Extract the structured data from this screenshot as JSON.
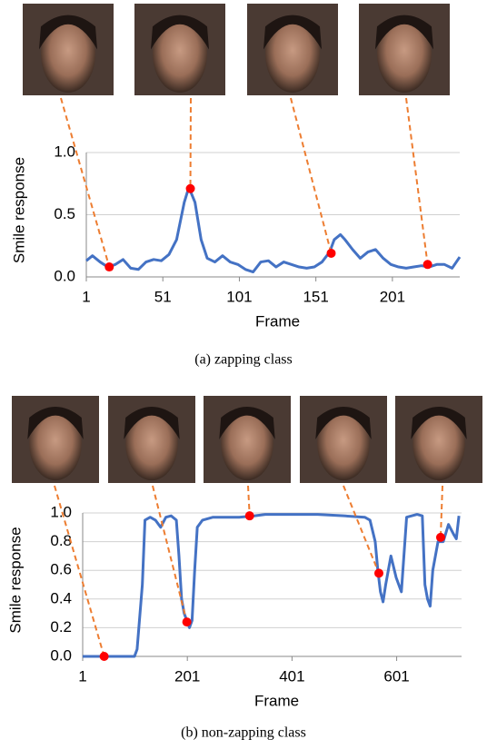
{
  "chart_data": [
    {
      "type": "line",
      "caption": "(a) zapping class",
      "ylabel": "Smile response",
      "xlabel": "Frame",
      "xlim": [
        1,
        245
      ],
      "xticks": [
        1,
        51,
        101,
        151,
        201
      ],
      "ylim": [
        0,
        1
      ],
      "yticks": [
        {
          "value": 0,
          "label": "0.0"
        },
        {
          "value": 0.5,
          "label": "0.5"
        },
        {
          "value": 1,
          "label": "1.0"
        }
      ],
      "grid": true,
      "series": [
        {
          "color": "#4472c4",
          "x": [
            1,
            5,
            10,
            15,
            20,
            25,
            30,
            35,
            40,
            45,
            50,
            55,
            60,
            65,
            68,
            72,
            76,
            80,
            85,
            90,
            95,
            100,
            105,
            110,
            115,
            120,
            125,
            130,
            135,
            140,
            145,
            150,
            155,
            160,
            163,
            167,
            170,
            175,
            180,
            185,
            190,
            195,
            200,
            205,
            210,
            215,
            220,
            225,
            230,
            235,
            240,
            245
          ],
          "values": [
            0.13,
            0.17,
            0.12,
            0.08,
            0.1,
            0.14,
            0.07,
            0.06,
            0.12,
            0.14,
            0.13,
            0.18,
            0.3,
            0.6,
            0.72,
            0.6,
            0.3,
            0.15,
            0.12,
            0.17,
            0.12,
            0.1,
            0.06,
            0.04,
            0.12,
            0.13,
            0.08,
            0.12,
            0.1,
            0.08,
            0.07,
            0.08,
            0.12,
            0.2,
            0.3,
            0.34,
            0.3,
            0.22,
            0.15,
            0.2,
            0.22,
            0.15,
            0.1,
            0.08,
            0.07,
            0.08,
            0.09,
            0.08,
            0.1,
            0.1,
            0.07,
            0.16
          ]
        }
      ],
      "markers": {
        "color": "#ff0000",
        "x": [
          16,
          69,
          161,
          224
        ],
        "values": [
          0.08,
          0.71,
          0.19,
          0.1
        ]
      }
    },
    {
      "type": "line",
      "caption": "(b) non-zapping class",
      "ylabel": "Smile response",
      "xlabel": "Frame",
      "xlim": [
        1,
        725
      ],
      "xticks": [
        1,
        201,
        401,
        601
      ],
      "ylim": [
        0,
        1
      ],
      "yticks": [
        {
          "value": 0,
          "label": "0.0"
        },
        {
          "value": 0.2,
          "label": "0.2"
        },
        {
          "value": 0.4,
          "label": "0.4"
        },
        {
          "value": 0.6,
          "label": "0.6"
        },
        {
          "value": 0.8,
          "label": "0.8"
        },
        {
          "value": 1,
          "label": "1.0"
        }
      ],
      "grid": true,
      "series": [
        {
          "color": "#4472c4",
          "x": [
            1,
            50,
            100,
            105,
            115,
            120,
            130,
            140,
            150,
            160,
            170,
            180,
            185,
            190,
            195,
            200,
            205,
            210,
            215,
            220,
            230,
            250,
            300,
            330,
            350,
            400,
            450,
            500,
            540,
            550,
            560,
            565,
            570,
            575,
            580,
            585,
            590,
            600,
            610,
            620,
            640,
            650,
            655,
            660,
            665,
            670,
            680,
            690,
            700,
            710,
            715,
            720
          ],
          "values": [
            0,
            0,
            0,
            0.05,
            0.5,
            0.95,
            0.97,
            0.95,
            0.9,
            0.97,
            0.98,
            0.95,
            0.7,
            0.4,
            0.3,
            0.25,
            0.2,
            0.25,
            0.6,
            0.9,
            0.95,
            0.97,
            0.97,
            0.98,
            0.99,
            0.99,
            0.99,
            0.98,
            0.97,
            0.95,
            0.8,
            0.6,
            0.45,
            0.38,
            0.5,
            0.6,
            0.7,
            0.55,
            0.45,
            0.97,
            0.99,
            0.98,
            0.5,
            0.4,
            0.35,
            0.6,
            0.8,
            0.8,
            0.92,
            0.85,
            0.82,
            0.98
          ]
        }
      ],
      "markers": {
        "color": "#ff0000",
        "x": [
          42,
          200,
          320,
          567,
          685
        ],
        "values": [
          0,
          0.24,
          0.98,
          0.58,
          0.83
        ]
      }
    }
  ]
}
